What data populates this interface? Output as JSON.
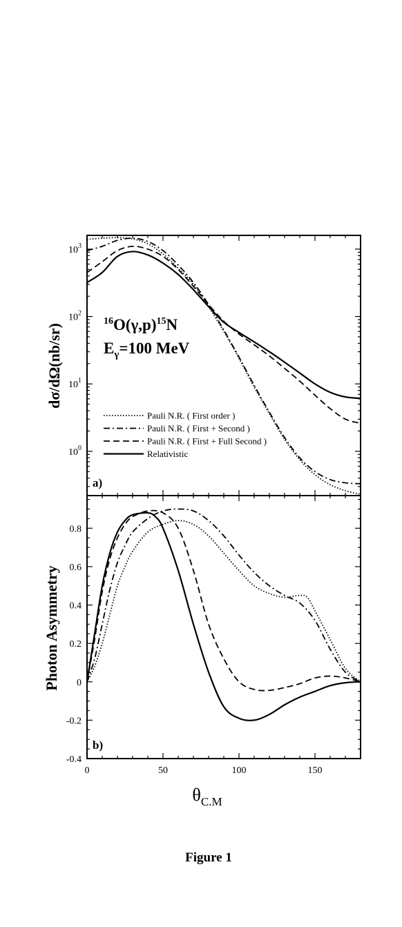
{
  "caption": "Figure 1",
  "x_axis": {
    "label_main": "θ",
    "label_sub": "C.M",
    "ticks": [
      0,
      50,
      100,
      150
    ],
    "lim": [
      0,
      180
    ]
  },
  "chart_data": [
    {
      "type": "line",
      "panel_label": "a)",
      "title_line1": {
        "pre_sup": "16",
        "mid": "O(γ,p)",
        "post_sup": "15",
        "end": "N"
      },
      "title_line2": {
        "pre": "E",
        "sub": "γ",
        "post": "=100 MeV"
      },
      "ylabel": "dσ/dΩ(nb/sr)",
      "yscale": "log",
      "ylim": [
        0.22,
        1600
      ],
      "yticks": [
        {
          "value": 1,
          "base": "10",
          "exp": "0"
        },
        {
          "value": 10,
          "base": "10",
          "exp": "1"
        },
        {
          "value": 100,
          "base": "10",
          "exp": "2"
        },
        {
          "value": 1000,
          "base": "10",
          "exp": "3"
        }
      ],
      "legend_position": "bottom-left",
      "grid": false,
      "series": [
        {
          "name": "Pauli N.R. ( First order )",
          "style": "dotted",
          "x": [
            0,
            10,
            20,
            30,
            40,
            50,
            60,
            70,
            80,
            90,
            100,
            110,
            120,
            130,
            140,
            150,
            160,
            170,
            180
          ],
          "y": [
            1400,
            1450,
            1480,
            1420,
            1200,
            850,
            520,
            300,
            140,
            60,
            24,
            9,
            3.6,
            1.5,
            0.75,
            0.45,
            0.32,
            0.26,
            0.23
          ]
        },
        {
          "name": "Pauli N.R. ( First + Second )",
          "style": "dashdot",
          "x": [
            0,
            10,
            20,
            30,
            40,
            50,
            60,
            70,
            80,
            90,
            100,
            110,
            120,
            130,
            140,
            150,
            160,
            170,
            180
          ],
          "y": [
            950,
            1100,
            1350,
            1450,
            1300,
            950,
            580,
            320,
            150,
            63,
            25,
            9.5,
            3.8,
            1.6,
            0.8,
            0.5,
            0.38,
            0.34,
            0.33
          ]
        },
        {
          "name": "Pauli N.R. ( First + Full Second )",
          "style": "dashed",
          "x": [
            0,
            10,
            20,
            30,
            40,
            50,
            60,
            70,
            80,
            90,
            100,
            110,
            120,
            130,
            140,
            150,
            160,
            170,
            180
          ],
          "y": [
            450,
            650,
            950,
            1100,
            1000,
            780,
            500,
            280,
            150,
            85,
            55,
            38,
            26,
            17,
            11,
            6.8,
            4.3,
            3.0,
            2.6
          ]
        },
        {
          "name": "Relativistic",
          "style": "solid",
          "x": [
            0,
            10,
            20,
            30,
            40,
            50,
            60,
            70,
            80,
            90,
            100,
            110,
            120,
            130,
            140,
            150,
            160,
            170,
            180
          ],
          "y": [
            320,
            450,
            780,
            920,
            820,
            620,
            420,
            250,
            140,
            82,
            58,
            42,
            30,
            21,
            14.5,
            10,
            7.5,
            6.4,
            6.1
          ]
        }
      ]
    },
    {
      "type": "line",
      "panel_label": "b)",
      "ylabel": "Photon Asymmetry",
      "yscale": "linear",
      "ylim": [
        -0.4,
        0.97
      ],
      "yticks": [
        -0.4,
        -0.2,
        0,
        0.2,
        0.4,
        0.6,
        0.8
      ],
      "ytick_labels": [
        "-0.4",
        "-0.2",
        "0",
        "0.2",
        "0.4",
        "0.6",
        "0.8"
      ],
      "grid": false,
      "series": [
        {
          "name": "Pauli N.R. ( First order )",
          "style": "dotted",
          "x": [
            0,
            5,
            10,
            15,
            20,
            25,
            30,
            40,
            50,
            60,
            70,
            80,
            90,
            100,
            110,
            120,
            130,
            140,
            145,
            150,
            160,
            170,
            180
          ],
          "y": [
            0,
            0.08,
            0.2,
            0.35,
            0.5,
            0.6,
            0.68,
            0.78,
            0.82,
            0.84,
            0.82,
            0.76,
            0.67,
            0.58,
            0.5,
            0.46,
            0.44,
            0.45,
            0.44,
            0.37,
            0.22,
            0.07,
            0.0
          ]
        },
        {
          "name": "Pauli N.R. ( First + Second )",
          "style": "dashdot",
          "x": [
            0,
            5,
            10,
            15,
            20,
            25,
            30,
            40,
            50,
            60,
            70,
            80,
            90,
            100,
            110,
            120,
            130,
            140,
            150,
            160,
            170,
            180
          ],
          "y": [
            0,
            0.12,
            0.3,
            0.48,
            0.62,
            0.71,
            0.78,
            0.85,
            0.89,
            0.9,
            0.89,
            0.84,
            0.76,
            0.66,
            0.57,
            0.5,
            0.45,
            0.41,
            0.32,
            0.17,
            0.05,
            0.0
          ]
        },
        {
          "name": "Pauli N.R. ( First + Full Second )",
          "style": "dashed",
          "x": [
            0,
            5,
            10,
            15,
            20,
            25,
            30,
            40,
            50,
            60,
            70,
            80,
            90,
            100,
            110,
            120,
            130,
            140,
            150,
            160,
            170,
            180
          ],
          "y": [
            0,
            0.22,
            0.47,
            0.64,
            0.75,
            0.82,
            0.86,
            0.89,
            0.88,
            0.8,
            0.58,
            0.3,
            0.12,
            0.0,
            -0.04,
            -0.045,
            -0.03,
            -0.01,
            0.02,
            0.03,
            0.02,
            0.0
          ]
        },
        {
          "name": "Relativistic",
          "style": "solid",
          "x": [
            0,
            5,
            10,
            15,
            20,
            25,
            30,
            40,
            45,
            50,
            60,
            70,
            80,
            90,
            100,
            110,
            120,
            130,
            140,
            150,
            160,
            170,
            180
          ],
          "y": [
            0,
            0.25,
            0.5,
            0.67,
            0.78,
            0.84,
            0.87,
            0.88,
            0.86,
            0.8,
            0.58,
            0.3,
            0.05,
            -0.13,
            -0.19,
            -0.2,
            -0.17,
            -0.12,
            -0.08,
            -0.05,
            -0.02,
            -0.005,
            0.0
          ]
        }
      ]
    }
  ]
}
